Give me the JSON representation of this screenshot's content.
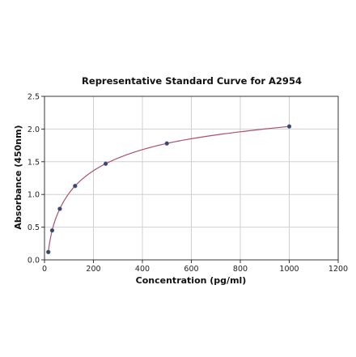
{
  "chart_data": {
    "type": "scatter",
    "title": "Representative Standard Curve for A2954",
    "xlabel": "Concentration (pg/ml)",
    "ylabel": "Absorbance (450nm)",
    "xlim": [
      0,
      1200
    ],
    "ylim": [
      0,
      2.5
    ],
    "x_ticks": [
      "0",
      "200",
      "400",
      "600",
      "800",
      "1000",
      "1200"
    ],
    "y_ticks": [
      "0.0",
      "0.5",
      "1.0",
      "1.5",
      "2.0",
      "2.5"
    ],
    "grid": true,
    "series": [
      {
        "points": [
          {
            "x": 15.6,
            "y": 0.12
          },
          {
            "x": 31.25,
            "y": 0.45
          },
          {
            "x": 62.5,
            "y": 0.78
          },
          {
            "x": 125,
            "y": 1.13
          },
          {
            "x": 250,
            "y": 1.47
          },
          {
            "x": 500,
            "y": 1.78
          },
          {
            "x": 1000,
            "y": 2.04
          }
        ],
        "fit": "smooth curve through points",
        "color": "#3a4466",
        "curve_color": "#b0506e"
      }
    ]
  }
}
